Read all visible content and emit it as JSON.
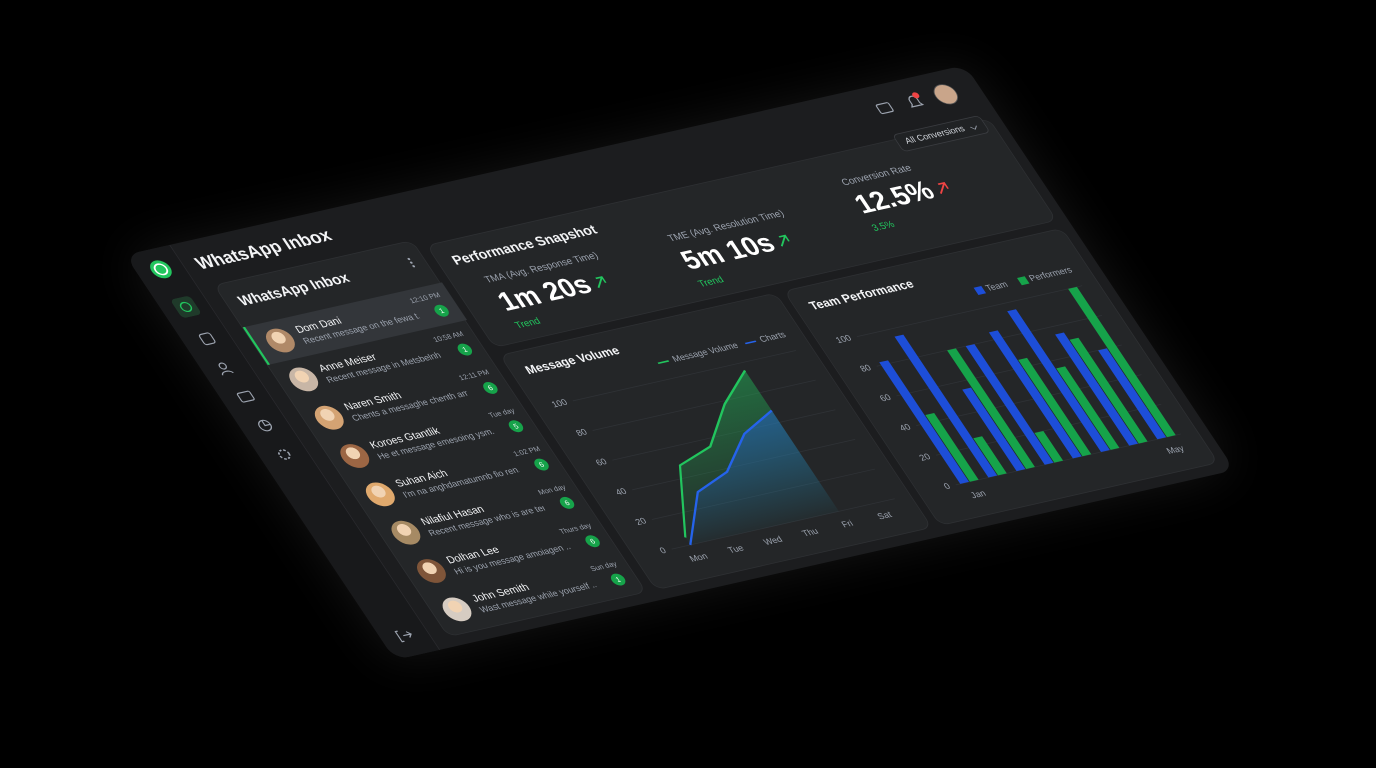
{
  "app": {
    "title": "WhatsApp Inbox"
  },
  "filter": {
    "label": "All Conversions"
  },
  "inbox": {
    "title": "WhatsApp Inbox",
    "conversations": [
      {
        "name": "Dom Dani",
        "preview": "Recent message on the fewa t...",
        "time": "12:10 PM",
        "unread": 1
      },
      {
        "name": "Anne Meiser",
        "preview": "Recent message in Metsbelnh am...",
        "time": "10:58 AM",
        "unread": 1
      },
      {
        "name": "Naren Smith",
        "preview": "Chents a messaghe chenth am...",
        "time": "12:11 PM",
        "unread": 6
      },
      {
        "name": "Koroes Gtantlik",
        "preview": "He et message emesoing ysm...",
        "time": "Tue day",
        "unread": 5
      },
      {
        "name": "Suhan Aich",
        "preview": "I'm na anghdamatumnb fio ren...",
        "time": "1:02 PM",
        "unread": 6
      },
      {
        "name": "Nilafiul Hasan",
        "preview": "Recent message who is are tern...",
        "time": "Mon day",
        "unread": 6
      },
      {
        "name": "Dolhan Lee",
        "preview": "Hi is you message amoiagen ...",
        "time": "Thurs day",
        "unread": 6
      },
      {
        "name": "John Semith",
        "preview": "Wast message while yourself ...",
        "time": "Sun day",
        "unread": 1
      }
    ]
  },
  "performance": {
    "title": "Performance Snapshot",
    "metrics": [
      {
        "label": "TMA (Avg. Response Time)",
        "value": "1m 20s",
        "trend": "Trend"
      },
      {
        "label": "TME (Avg. Resolution Time)",
        "value": "5m 10s",
        "trend": "Trend"
      },
      {
        "label": "Conversion Rate",
        "value": "12.5%",
        "trend": "3.5%"
      }
    ]
  },
  "chart_data": [
    {
      "type": "area",
      "title": "Message Volume",
      "categories": [
        "Mon",
        "Tue",
        "Wed",
        "Thu",
        "Fri",
        "Sat"
      ],
      "series": [
        {
          "name": "Message Volume",
          "color": "#22c55e",
          "values": [
            5,
            48,
            55,
            78,
            95,
            null
          ]
        },
        {
          "name": "Charts",
          "color": "#2563eb",
          "values": [
            0,
            30,
            38,
            58,
            68,
            null
          ]
        }
      ],
      "ylim": [
        0,
        100
      ],
      "yticks": [
        0,
        20,
        40,
        60,
        80,
        100
      ],
      "legend": "top-right"
    },
    {
      "type": "bar",
      "title": "Team Performance",
      "categories": [
        "Jan",
        null,
        null,
        null,
        null,
        null,
        null,
        "May"
      ],
      "series": [
        {
          "name": "Team",
          "color": "#1d4ed8",
          "values": [
            82,
            95,
            55,
            80,
            85,
            95,
            75,
            60
          ]
        },
        {
          "name": "Performers",
          "color": "#16a34a",
          "values": [
            45,
            25,
            80,
            20,
            65,
            55,
            70,
            100
          ]
        }
      ],
      "ylim": [
        0,
        100
      ],
      "yticks": [
        0,
        20,
        40,
        60,
        80,
        100
      ],
      "legend": "top-right"
    }
  ]
}
